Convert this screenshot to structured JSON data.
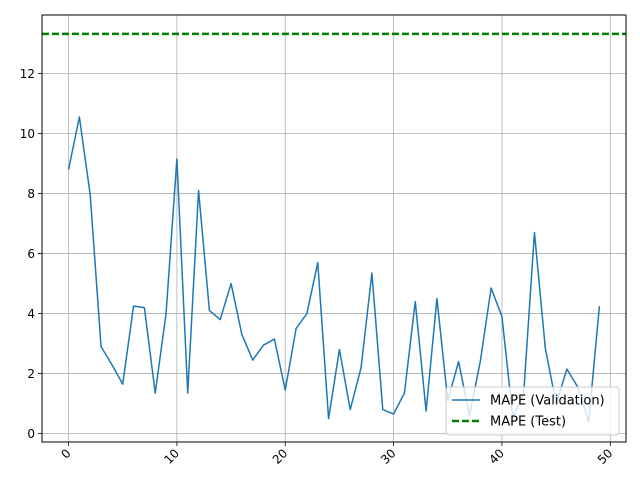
{
  "chart_data": {
    "type": "line",
    "title": "",
    "xlabel": "",
    "ylabel": "",
    "xlim": [
      -2.45,
      51.45
    ],
    "ylim": [
      -0.28,
      13.95
    ],
    "x_ticks": [
      "0",
      "10",
      "20",
      "30",
      "40",
      "50"
    ],
    "y_ticks": [
      "0",
      "2",
      "4",
      "6",
      "8",
      "10",
      "12"
    ],
    "grid": true,
    "legend": {
      "location": "lower-right",
      "entries": [
        "MAPE (Validation)",
        "MAPE (Test)"
      ]
    },
    "series": [
      {
        "name": "MAPE (Validation)",
        "style": "solid",
        "color": "#1f77b4",
        "x": [
          0,
          1,
          2,
          3,
          4,
          5,
          6,
          7,
          8,
          9,
          10,
          11,
          12,
          13,
          14,
          15,
          16,
          17,
          18,
          19,
          20,
          21,
          22,
          23,
          24,
          25,
          26,
          27,
          28,
          29,
          30,
          31,
          32,
          33,
          34,
          35,
          36,
          37,
          38,
          39,
          40,
          41,
          42,
          43,
          44,
          45,
          46,
          47,
          48,
          49
        ],
        "values": [
          8.8,
          10.55,
          7.95,
          2.9,
          2.3,
          1.65,
          4.25,
          4.2,
          1.35,
          4.0,
          9.15,
          1.35,
          8.1,
          4.1,
          3.8,
          5.0,
          3.3,
          2.45,
          2.95,
          3.15,
          1.45,
          3.5,
          4.0,
          5.7,
          0.5,
          2.8,
          0.8,
          2.2,
          5.35,
          0.8,
          0.65,
          1.35,
          4.4,
          0.75,
          4.5,
          1.1,
          2.4,
          0.6,
          2.4,
          4.85,
          3.9,
          0.55,
          1.3,
          6.7,
          2.85,
          1.0,
          2.15,
          1.55,
          0.4,
          4.25
        ]
      },
      {
        "name": "MAPE (Test)",
        "style": "dashed",
        "color": "#008000",
        "horizontal_line": 13.32
      }
    ]
  }
}
